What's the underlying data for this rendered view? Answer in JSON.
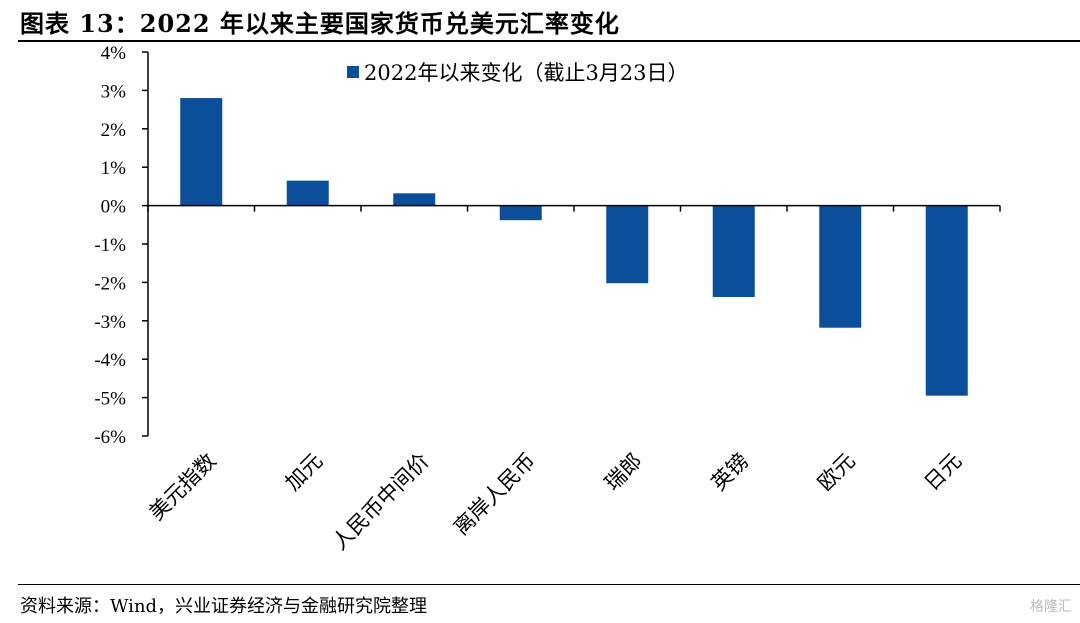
{
  "title": "图表 13：2022 年以来主要国家货币兑美元汇率变化",
  "source": "资料来源：Wind，兴业证券经济与金融研究院整理",
  "watermark": "格隆汇",
  "colors": {
    "bar": "#0b4f9a",
    "axis": "#000000"
  },
  "chart_data": {
    "type": "bar",
    "categories": [
      "美元指数",
      "加元",
      "人民币中间价",
      "离岸人民币",
      "瑞郎",
      "英镑",
      "欧元",
      "日元"
    ],
    "series": [
      {
        "name": "2022年以来变化（截止3月23日）",
        "values": [
          2.8,
          0.65,
          0.32,
          -0.38,
          -2.02,
          -2.38,
          -3.18,
          -4.95
        ]
      }
    ],
    "y_ticks": [
      "4%",
      "3%",
      "2%",
      "1%",
      "0%",
      "-1%",
      "-2%",
      "-3%",
      "-4%",
      "-5%",
      "-6%"
    ],
    "ylim": [
      -6,
      4
    ],
    "grid": false,
    "legend": "top-center"
  }
}
